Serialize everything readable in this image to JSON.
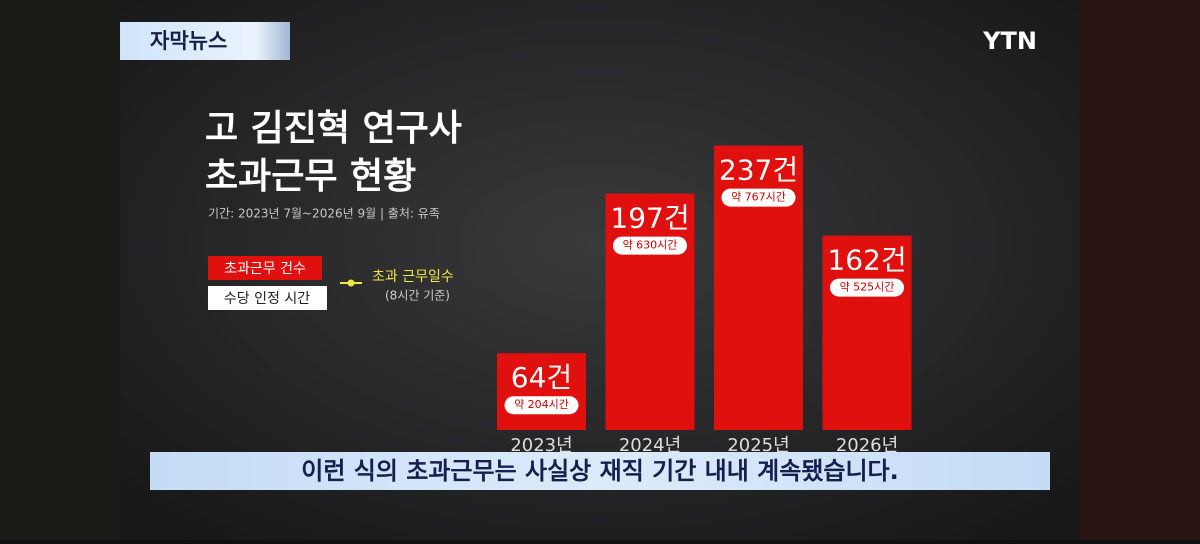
{
  "badge": "자막뉴스",
  "logo": "YTN",
  "caption": "이런 식의 초과근무는 사실상 재직 기간 내내 계속됐습니다.",
  "chart_data": {
    "type": "bar",
    "title": [
      "고 김진혁 연구사",
      "초과근무 현황"
    ],
    "subtitle": "기간: 2023년 7월~2026년 9월 | 출처: 유족",
    "categories": [
      "2023년",
      "2024년",
      "2025년",
      "2026년"
    ],
    "series": [
      {
        "name": "초과근무 건수",
        "color": "#e0100f",
        "values": [
          64,
          197,
          237,
          162
        ],
        "value_labels": [
          "64건",
          "197건",
          "237건",
          "162건"
        ]
      },
      {
        "name": "수당 인정 시간",
        "color": "#ffffff",
        "values": [
          204,
          630,
          767,
          525
        ],
        "value_labels": [
          "약 204시간",
          "약 630시간",
          "약 767시간",
          "약 525시간"
        ]
      }
    ],
    "legend_extra": {
      "name": "초과 근무일수",
      "note": "(8시간 기준)",
      "color": "#f2e640"
    }
  }
}
